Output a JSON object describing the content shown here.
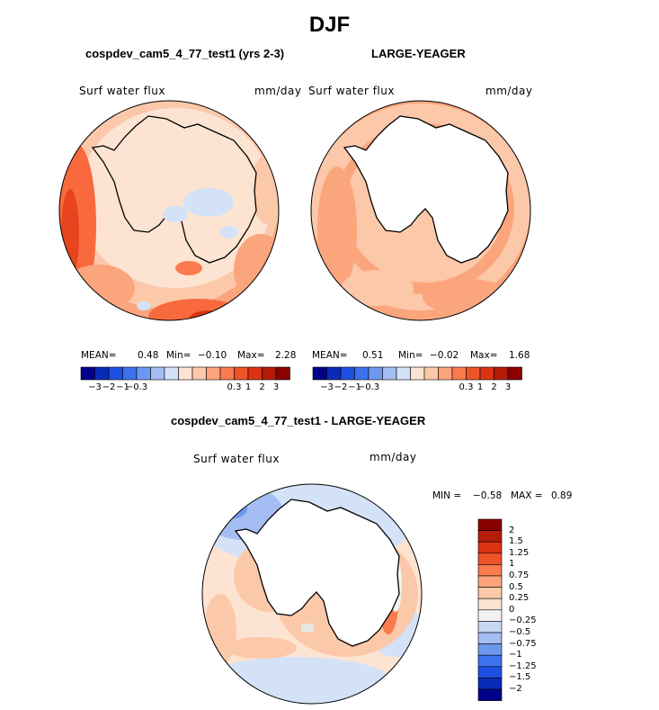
{
  "season_title": "DJF",
  "panels": {
    "test": {
      "case_title": "cospdev_cam5_4_77_test1 (yrs 2-3)",
      "variable": "Surf water flux",
      "units": "mm/day",
      "mean_label": "MEAN=",
      "mean": "0.48",
      "min_label": "Min=",
      "min": "−0.10",
      "max_label": "Max=",
      "max": "2.28"
    },
    "obs": {
      "case_title": "LARGE-YEAGER",
      "variable": "Surf water flux",
      "units": "mm/day",
      "mean_label": "MEAN=",
      "mean": "0.51",
      "min_label": "Min=",
      "min": "−0.02",
      "max_label": "Max=",
      "max": "1.68"
    },
    "diff": {
      "case_title": "cospdev_cam5_4_77_test1 - LARGE-YEAGER",
      "variable": "Surf water flux",
      "units": "mm/day",
      "min_label": "MIN =",
      "min": "−0.58",
      "max_label": "MAX =",
      "max": "0.89"
    }
  },
  "horizontal_colorbar": {
    "colors": [
      "#00008b",
      "#0a2ab8",
      "#1f4fe0",
      "#3d73f0",
      "#6e98f0",
      "#a4bdf2",
      "#d4e2f8",
      "#fde4d2",
      "#fcc8aa",
      "#fca37d",
      "#fa7b4e",
      "#ef5428",
      "#dc3312",
      "#b51c08",
      "#8b0000"
    ],
    "tick_labels": [
      "−3",
      "−2",
      "−1",
      "−0.3",
      "0.3",
      "1",
      "2",
      "3"
    ]
  },
  "vertical_colorbar": {
    "colors_top_to_bottom": [
      "#8b0000",
      "#b51c08",
      "#dc3312",
      "#ef5428",
      "#fa7b4e",
      "#fca37d",
      "#fcc8aa",
      "#fde4d2",
      "#f2f2f2",
      "#c7d8f5",
      "#a4bdf2",
      "#6e98f0",
      "#3d73f0",
      "#1f4fe0",
      "#0a2ab8",
      "#00008b"
    ],
    "tick_labels": [
      "2",
      "1.5",
      "1.25",
      "1",
      "0.75",
      "0.5",
      "0.25",
      "0",
      "−0.25",
      "−0.5",
      "−0.75",
      "−1",
      "−1.25",
      "−1.5",
      "−2"
    ]
  },
  "chart_data": [
    {
      "type": "heatmap",
      "projection": "south-polar-stereographic",
      "title": "cospdev_cam5_4_77_test1 (yrs 2-3)",
      "variable": "Surf water flux",
      "units": "mm/day",
      "stats": {
        "mean": 0.48,
        "min": -0.1,
        "max": 2.28
      },
      "contour_levels": [
        -3,
        -2,
        -1,
        -0.3,
        0.3,
        1,
        2,
        3
      ]
    },
    {
      "type": "heatmap",
      "projection": "south-polar-stereographic",
      "title": "LARGE-YEAGER",
      "variable": "Surf water flux",
      "units": "mm/day",
      "stats": {
        "mean": 0.51,
        "min": -0.02,
        "max": 1.68
      },
      "contour_levels": [
        -3,
        -2,
        -1,
        -0.3,
        0.3,
        1,
        2,
        3
      ]
    },
    {
      "type": "heatmap",
      "projection": "south-polar-stereographic",
      "title": "cospdev_cam5_4_77_test1 - LARGE-YEAGER",
      "variable": "Surf water flux",
      "units": "mm/day",
      "stats": {
        "min": -0.58,
        "max": 0.89
      },
      "contour_levels": [
        -2,
        -1.5,
        -1.25,
        -1,
        -0.75,
        -0.5,
        -0.25,
        0,
        0.25,
        0.5,
        0.75,
        1,
        1.25,
        1.5,
        2
      ]
    }
  ]
}
